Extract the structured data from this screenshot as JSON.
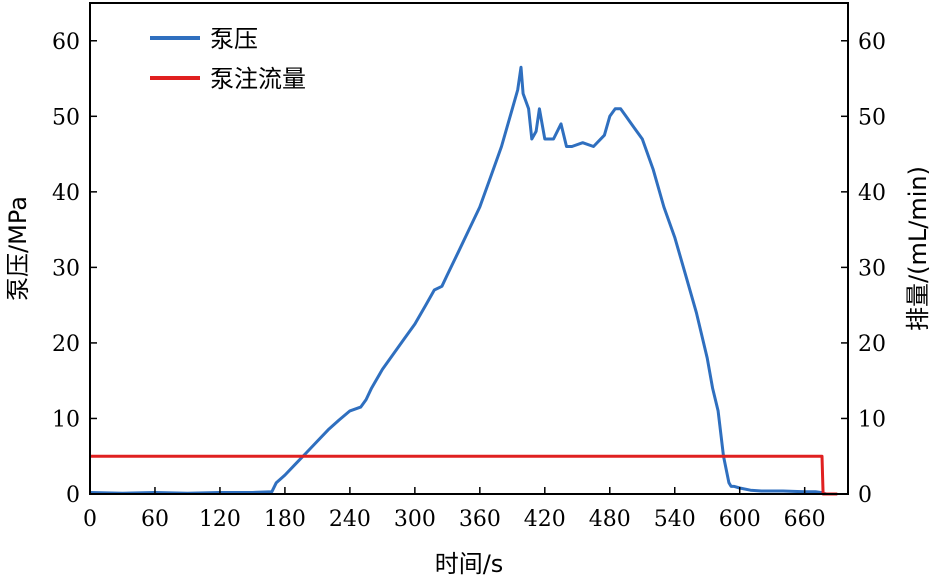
{
  "chart_data": {
    "type": "line",
    "xlabel": "时间/s",
    "ylabel_left": "泵压/MPa",
    "ylabel_right": "排量/(mL/min)",
    "xlim": [
      0,
      700
    ],
    "ylim_left": [
      0,
      65
    ],
    "ylim_right": [
      0,
      65
    ],
    "x_ticks": [
      0,
      60,
      120,
      180,
      240,
      300,
      360,
      420,
      480,
      540,
      600,
      660
    ],
    "y_ticks_left": [
      0,
      10,
      20,
      30,
      40,
      50,
      60
    ],
    "y_ticks_right": [
      0,
      10,
      20,
      30,
      40,
      50,
      60
    ],
    "legend_position": "top-left",
    "series": [
      {
        "name": "泵压",
        "color": "#2f6fbf",
        "x": [
          0,
          30,
          60,
          90,
          120,
          150,
          168,
          172,
          180,
          190,
          200,
          210,
          220,
          230,
          240,
          250,
          255,
          260,
          270,
          280,
          290,
          300,
          310,
          318,
          325,
          330,
          340,
          350,
          360,
          370,
          380,
          390,
          395,
          398,
          400,
          405,
          408,
          412,
          415,
          420,
          428,
          435,
          440,
          445,
          455,
          465,
          475,
          480,
          485,
          490,
          495,
          500,
          510,
          520,
          530,
          540,
          550,
          560,
          570,
          575,
          580,
          585,
          590,
          592,
          595,
          600,
          610,
          620,
          640,
          660,
          670,
          675,
          680,
          690
        ],
        "y": [
          0.2,
          0.1,
          0.2,
          0.1,
          0.2,
          0.2,
          0.3,
          1.5,
          2.5,
          4,
          5.5,
          7,
          8.5,
          9.8,
          11,
          11.5,
          12.5,
          14,
          16.5,
          18.5,
          20.5,
          22.5,
          25,
          27,
          27.5,
          29,
          32,
          35,
          38,
          42,
          46,
          51,
          53.5,
          56.5,
          53,
          51,
          47,
          48,
          51,
          47,
          47,
          49,
          46,
          46,
          46.5,
          46,
          47.5,
          50,
          51,
          51,
          50,
          49,
          47,
          43,
          38,
          34,
          29,
          24,
          18,
          14,
          11,
          5,
          1.5,
          1,
          1,
          0.8,
          0.5,
          0.4,
          0.4,
          0.3,
          0.3,
          0.2,
          0,
          0
        ]
      },
      {
        "name": "泵注流量",
        "color": "#e02020",
        "x": [
          0,
          676,
          677,
          690
        ],
        "y": [
          5,
          5,
          0,
          0
        ]
      }
    ]
  }
}
